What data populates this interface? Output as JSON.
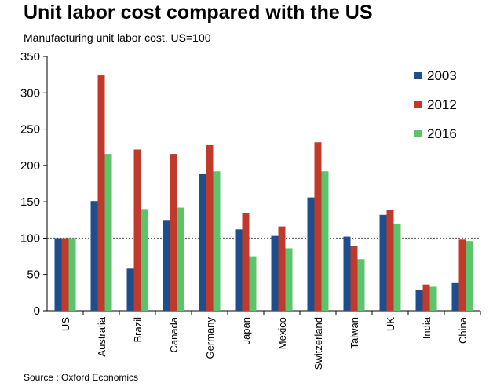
{
  "title": "Unit labor cost compared with the US",
  "subtitle": "Manufacturing unit labor cost, US=100",
  "source": "Source : Oxford Economics",
  "chart_data": {
    "type": "bar",
    "title": "Unit labor cost compared with the US",
    "ylabel": "Manufacturing unit labor cost, US=100",
    "xlabel": "",
    "ylim": [
      0,
      350
    ],
    "yticks": [
      0,
      50,
      100,
      150,
      200,
      250,
      300,
      350
    ],
    "reference_line": 100,
    "categories": [
      "US",
      "Australia",
      "Brazil",
      "Canada",
      "Germany",
      "Japan",
      "Mexico",
      "Switzerland",
      "Taiwan",
      "UK",
      "India",
      "China"
    ],
    "series": [
      {
        "name": "2003",
        "color": "#1f4e8c",
        "values": [
          100,
          151,
          58,
          125,
          188,
          112,
          103,
          156,
          102,
          132,
          29,
          38
        ]
      },
      {
        "name": "2012",
        "color": "#c0392b",
        "values": [
          100,
          324,
          222,
          216,
          228,
          134,
          116,
          232,
          89,
          139,
          36,
          98
        ]
      },
      {
        "name": "2016",
        "color": "#5cc46a",
        "values": [
          100,
          216,
          140,
          142,
          192,
          75,
          86,
          192,
          71,
          120,
          33,
          96
        ]
      }
    ],
    "legend_position": "top-right"
  }
}
